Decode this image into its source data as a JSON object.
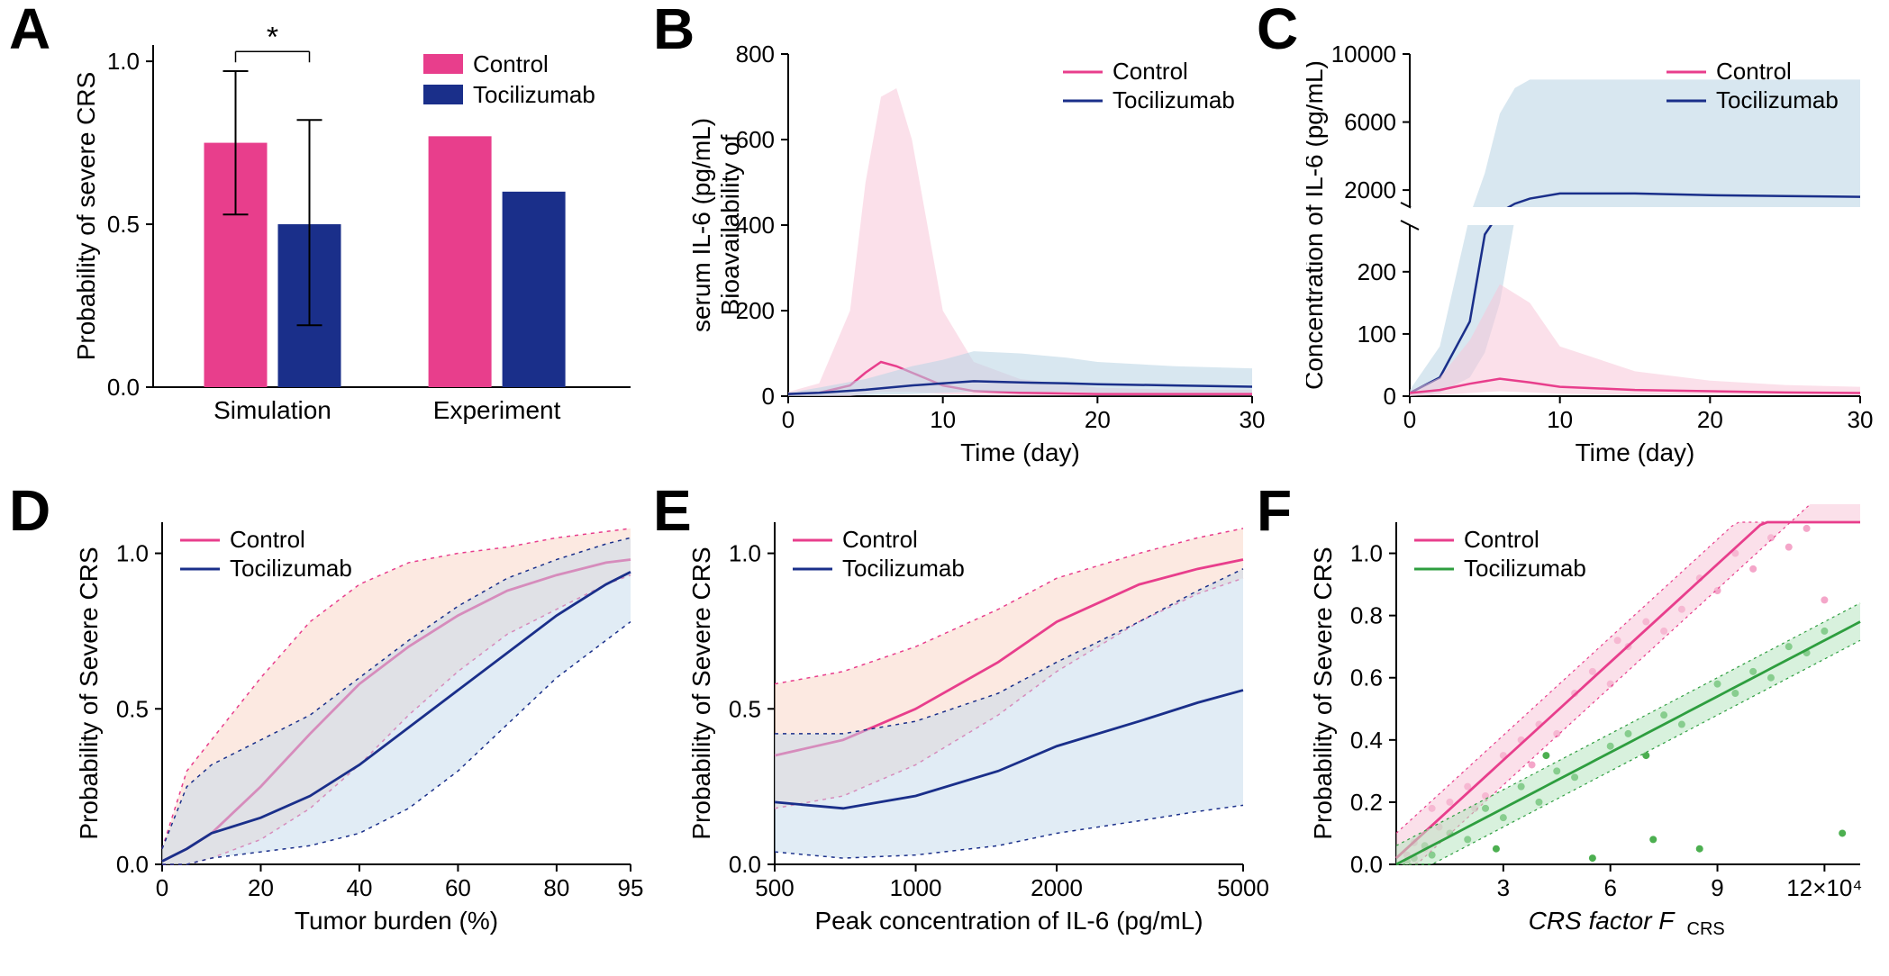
{
  "labels": {
    "A": "A",
    "B": "B",
    "C": "C",
    "D": "D",
    "E": "E",
    "F": "F"
  },
  "colors": {
    "control_bar": "#e83e8c",
    "toci_bar": "#1a2f8a",
    "control_line": "#e83e8c",
    "toci_line": "#1a2f8a",
    "control_fill": "#f7c6d9",
    "toci_fill": "#b8d4e3",
    "control_fill2": "#f9d4c4",
    "toci_fill2": "#c4d9ec",
    "green_line": "#2e9e3f",
    "green_fill": "#b8e6c1",
    "scatter_pink": "#f4a6c9",
    "scatter_green": "#4caf50",
    "black": "#000000"
  },
  "legend": {
    "control": "Control",
    "toci": "Tocilizumab"
  },
  "A": {
    "ylabel": "Probability of severe CRS",
    "xticks": [
      "Simulation",
      "Experiment"
    ],
    "yticks": [
      "0.0",
      "0.5",
      "1.0"
    ],
    "ylim": [
      0,
      1.05
    ],
    "bars": {
      "sim_control": {
        "v": 0.75,
        "err_lo": 0.53,
        "err_hi": 0.97
      },
      "sim_toci": {
        "v": 0.5,
        "err_lo": 0.19,
        "err_hi": 0.82
      },
      "exp_control": {
        "v": 0.77
      },
      "exp_toci": {
        "v": 0.6
      }
    },
    "sig": "*",
    "bar_width": 0.28,
    "legend_pos": "topright"
  },
  "B": {
    "ylabel": "Bioavailability of\nserum IL-6 (pg/mL)",
    "xlabel": "Time (day)",
    "xlim": [
      0,
      30
    ],
    "ylim": [
      0,
      800
    ],
    "xticks": [
      0,
      10,
      20,
      30
    ],
    "yticks": [
      0,
      200,
      400,
      600,
      800
    ],
    "control": {
      "x": [
        0,
        2,
        4,
        5,
        6,
        7,
        8,
        9,
        10,
        12,
        15,
        20,
        25,
        30
      ],
      "median": [
        5,
        8,
        25,
        55,
        80,
        70,
        55,
        40,
        25,
        12,
        8,
        5,
        5,
        5
      ],
      "upper": [
        10,
        30,
        200,
        500,
        700,
        720,
        600,
        400,
        200,
        80,
        40,
        20,
        15,
        15
      ],
      "lower": [
        0,
        0,
        0,
        5,
        10,
        10,
        10,
        8,
        5,
        2,
        1,
        1,
        1,
        1
      ]
    },
    "toci": {
      "x": [
        0,
        2,
        5,
        8,
        10,
        12,
        15,
        18,
        20,
        25,
        30
      ],
      "median": [
        5,
        8,
        15,
        25,
        30,
        35,
        32,
        30,
        28,
        25,
        22
      ],
      "upper": [
        8,
        20,
        40,
        70,
        85,
        105,
        100,
        90,
        80,
        70,
        65
      ],
      "lower": [
        0,
        0,
        2,
        5,
        8,
        10,
        10,
        10,
        8,
        8,
        8
      ]
    }
  },
  "C": {
    "ylabel": "Concentration of IL-6 (pg/mL)",
    "xlabel": "Time (day)",
    "xlim": [
      0,
      30
    ],
    "lower_ylim": [
      0,
      275
    ],
    "upper_ylim": [
      1000,
      10000
    ],
    "lower_yticks": [
      0,
      100,
      200
    ],
    "upper_yticks": [
      2000,
      6000,
      10000
    ],
    "xticks": [
      0,
      10,
      20,
      30
    ],
    "toci": {
      "x": [
        0,
        2,
        4,
        5,
        6,
        7,
        8,
        10,
        15,
        20,
        25,
        30
      ],
      "median": [
        5,
        30,
        120,
        260,
        700,
        1200,
        1500,
        1800,
        1800,
        1700,
        1650,
        1600
      ],
      "upper": [
        10,
        80,
        500,
        3000,
        6500,
        8000,
        8500,
        8500,
        8500,
        8500,
        8500,
        8500
      ],
      "lower": [
        0,
        5,
        30,
        70,
        150,
        300,
        500,
        700,
        700,
        700,
        700,
        700
      ]
    },
    "control": {
      "x": [
        0,
        2,
        4,
        6,
        8,
        10,
        15,
        20,
        25,
        30
      ],
      "median": [
        5,
        10,
        20,
        28,
        22,
        15,
        10,
        8,
        6,
        5
      ],
      "upper": [
        8,
        30,
        90,
        180,
        150,
        80,
        40,
        25,
        18,
        15
      ],
      "lower": [
        0,
        2,
        5,
        8,
        6,
        4,
        2,
        2,
        2,
        2
      ]
    }
  },
  "D": {
    "ylabel": "Probability of Severe CRS",
    "xlabel": "Tumor burden (%)",
    "xlim": [
      0,
      95
    ],
    "ylim": [
      0,
      1.1
    ],
    "xticks": [
      0,
      20,
      40,
      60,
      80,
      95
    ],
    "yticks": [
      "0.0",
      "0.5",
      "1.0"
    ],
    "control": {
      "x": [
        0,
        5,
        10,
        20,
        30,
        40,
        50,
        60,
        70,
        80,
        90,
        95
      ],
      "median": [
        0.01,
        0.05,
        0.1,
        0.25,
        0.42,
        0.58,
        0.7,
        0.8,
        0.88,
        0.93,
        0.97,
        0.98
      ],
      "upper": [
        0.05,
        0.3,
        0.4,
        0.6,
        0.78,
        0.9,
        0.97,
        1.0,
        1.02,
        1.05,
        1.07,
        1.08
      ],
      "lower": [
        0,
        0,
        0.02,
        0.08,
        0.18,
        0.32,
        0.48,
        0.62,
        0.74,
        0.82,
        0.9,
        0.93
      ]
    },
    "toci": {
      "x": [
        0,
        5,
        10,
        20,
        30,
        40,
        50,
        60,
        70,
        80,
        90,
        95
      ],
      "median": [
        0.01,
        0.05,
        0.1,
        0.15,
        0.22,
        0.32,
        0.44,
        0.56,
        0.68,
        0.8,
        0.9,
        0.94
      ],
      "upper": [
        0.05,
        0.25,
        0.32,
        0.4,
        0.48,
        0.6,
        0.72,
        0.83,
        0.92,
        0.98,
        1.03,
        1.05
      ],
      "lower": [
        0,
        0,
        0.02,
        0.04,
        0.06,
        0.1,
        0.18,
        0.3,
        0.45,
        0.6,
        0.72,
        0.78
      ]
    }
  },
  "E": {
    "ylabel": "Probability of Severe CRS",
    "xlabel": "Peak concentration of IL-6 (pg/mL)",
    "xlim_log": [
      500,
      5000
    ],
    "ylim": [
      0,
      1.1
    ],
    "xticks": [
      500,
      1000,
      2000,
      5000
    ],
    "yticks": [
      "0.0",
      "0.5",
      "1.0"
    ],
    "control": {
      "x": [
        500,
        700,
        1000,
        1500,
        2000,
        3000,
        4000,
        5000
      ],
      "median": [
        0.35,
        0.4,
        0.5,
        0.65,
        0.78,
        0.9,
        0.95,
        0.98
      ],
      "upper": [
        0.58,
        0.62,
        0.7,
        0.82,
        0.92,
        1.0,
        1.05,
        1.08
      ],
      "lower": [
        0.18,
        0.22,
        0.32,
        0.48,
        0.62,
        0.78,
        0.87,
        0.92
      ]
    },
    "toci": {
      "x": [
        500,
        700,
        1000,
        1500,
        2000,
        3000,
        4000,
        5000
      ],
      "median": [
        0.2,
        0.18,
        0.22,
        0.3,
        0.38,
        0.46,
        0.52,
        0.56
      ],
      "upper": [
        0.42,
        0.42,
        0.46,
        0.55,
        0.65,
        0.78,
        0.88,
        0.95
      ],
      "lower": [
        0.04,
        0.02,
        0.03,
        0.06,
        0.1,
        0.14,
        0.17,
        0.19
      ]
    }
  },
  "F": {
    "ylabel": "Probability of Severe CRS",
    "xlabel": "CRS factor F",
    "xlabel_sub": "CRS",
    "xlim": [
      0,
      13
    ],
    "ylim": [
      0,
      1.1
    ],
    "xticks": [
      3,
      6,
      9,
      12
    ],
    "xtick_suffix": "×10⁴",
    "yticks": [
      "0.0",
      "0.2",
      "0.4",
      "0.6",
      "0.8",
      "1.0"
    ],
    "control": {
      "slope": 0.105,
      "intercept": 0.02,
      "band": 0.08
    },
    "toci": {
      "slope": 0.06,
      "intercept": 0.0,
      "band": 0.06
    },
    "scatter_control": [
      [
        0.3,
        0.03
      ],
      [
        0.5,
        0.07
      ],
      [
        0.8,
        0.05
      ],
      [
        1.2,
        0.12
      ],
      [
        1.5,
        0.2
      ],
      [
        2.0,
        0.25
      ],
      [
        2.5,
        0.22
      ],
      [
        3.0,
        0.35
      ],
      [
        3.5,
        0.4
      ],
      [
        4.0,
        0.45
      ],
      [
        4.5,
        0.42
      ],
      [
        5.0,
        0.55
      ],
      [
        5.5,
        0.62
      ],
      [
        6.0,
        0.58
      ],
      [
        6.5,
        0.7
      ],
      [
        7.0,
        0.78
      ],
      [
        7.5,
        0.75
      ],
      [
        8.0,
        0.82
      ],
      [
        8.5,
        0.92
      ],
      [
        9.0,
        0.88
      ],
      [
        9.5,
        1.0
      ],
      [
        10.0,
        0.95
      ],
      [
        10.5,
        1.05
      ],
      [
        11.0,
        1.02
      ],
      [
        11.5,
        1.08
      ],
      [
        12.0,
        0.85
      ],
      [
        1.0,
        0.18
      ],
      [
        2.2,
        0.18
      ],
      [
        3.8,
        0.32
      ],
      [
        6.2,
        0.72
      ]
    ],
    "scatter_toci": [
      [
        0.3,
        0.01
      ],
      [
        0.5,
        0.02
      ],
      [
        0.8,
        0.06
      ],
      [
        1.0,
        0.03
      ],
      [
        1.5,
        0.1
      ],
      [
        2.0,
        0.08
      ],
      [
        2.5,
        0.18
      ],
      [
        3.0,
        0.15
      ],
      [
        3.5,
        0.25
      ],
      [
        4.0,
        0.2
      ],
      [
        4.5,
        0.3
      ],
      [
        5.0,
        0.28
      ],
      [
        5.5,
        0.02
      ],
      [
        6.0,
        0.38
      ],
      [
        6.5,
        0.42
      ],
      [
        7.0,
        0.35
      ],
      [
        7.5,
        0.48
      ],
      [
        8.0,
        0.45
      ],
      [
        8.5,
        0.05
      ],
      [
        9.0,
        0.58
      ],
      [
        9.5,
        0.55
      ],
      [
        10.0,
        0.62
      ],
      [
        10.5,
        0.6
      ],
      [
        11.0,
        0.7
      ],
      [
        11.5,
        0.68
      ],
      [
        12.0,
        0.75
      ],
      [
        12.5,
        0.1
      ],
      [
        2.8,
        0.05
      ],
      [
        4.2,
        0.35
      ],
      [
        7.2,
        0.08
      ]
    ]
  }
}
